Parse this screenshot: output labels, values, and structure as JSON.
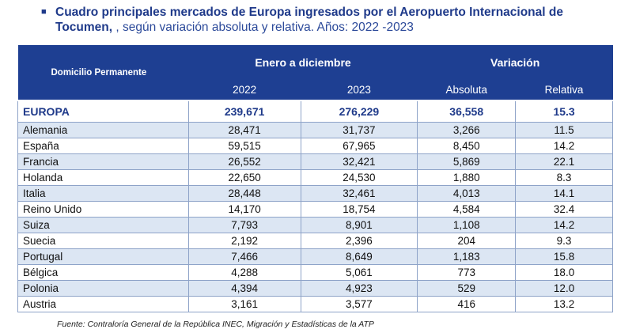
{
  "title": {
    "bold": "Cuadro principales mercados de Europa ingresados por el Aeropuerto Internacional de Tocumen,",
    "normal": ", según variación absoluta y relativa. Años: 2022 -2023"
  },
  "header": {
    "row_label": "Domicilio Permanente",
    "group1": "Enero a diciembre",
    "group2": "Variación",
    "col_2022": "2022",
    "col_2023": "2023",
    "absoluta": "Absoluta",
    "relativa": "Relativa"
  },
  "total": {
    "name": "EUROPA",
    "y2022": "239,671",
    "y2023": "276,229",
    "abs": "36,558",
    "rel": "15.3"
  },
  "rows": [
    {
      "name": "Alemania",
      "y2022": "28,471",
      "y2023": "31,737",
      "abs": "3,266",
      "rel": "11.5"
    },
    {
      "name": "España",
      "y2022": "59,515",
      "y2023": "67,965",
      "abs": "8,450",
      "rel": "14.2"
    },
    {
      "name": "Francia",
      "y2022": "26,552",
      "y2023": "32,421",
      "abs": "5,869",
      "rel": "22.1"
    },
    {
      "name": "Holanda",
      "y2022": "22,650",
      "y2023": "24,530",
      "abs": "1,880",
      "rel": "8.3"
    },
    {
      "name": "Italia",
      "y2022": "28,448",
      "y2023": "32,461",
      "abs": "4,013",
      "rel": "14.1"
    },
    {
      "name": "Reino Unido",
      "y2022": "14,170",
      "y2023": "18,754",
      "abs": "4,584",
      "rel": "32.4"
    },
    {
      "name": "Suiza",
      "y2022": "7,793",
      "y2023": "8,901",
      "abs": "1,108",
      "rel": "14.2"
    },
    {
      "name": "Suecia",
      "y2022": "2,192",
      "y2023": "2,396",
      "abs": "204",
      "rel": "9.3"
    },
    {
      "name": "Portugal",
      "y2022": "7,466",
      "y2023": "8,649",
      "abs": "1,183",
      "rel": "15.8"
    },
    {
      "name": "Bélgica",
      "y2022": "4,288",
      "y2023": "5,061",
      "abs": "773",
      "rel": "18.0"
    },
    {
      "name": "Polonia",
      "y2022": "4,394",
      "y2023": "4,923",
      "abs": "529",
      "rel": "12.0"
    },
    {
      "name": "Austria",
      "y2022": "3,161",
      "y2023": "3,577",
      "abs": "416",
      "rel": "13.2"
    }
  ],
  "source": "Fuente: Contraloría General de la República INEC, Migración y Estadísticas de la ATP",
  "colors": {
    "header": "#1e3f92",
    "title": "#1f3a8a",
    "stripe": "#dce6f3"
  }
}
